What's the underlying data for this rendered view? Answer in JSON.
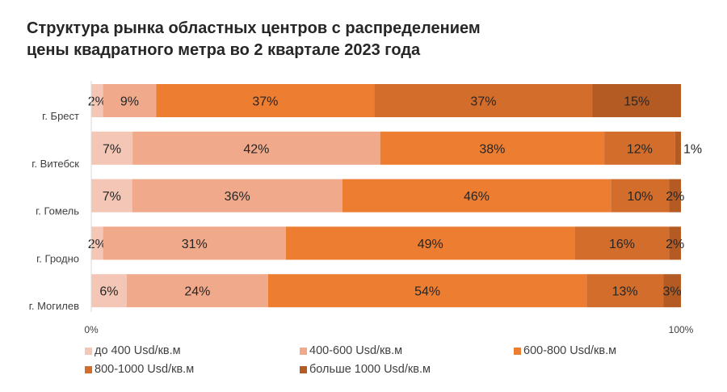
{
  "chart_data": {
    "type": "bar",
    "orientation": "horizontal",
    "stacked": "percent",
    "title": "Структура рынка областных центров с распределением цены квадратного метра во 2 квартале 2023 года",
    "title_lines": [
      "Структура рынка областных центров с распределением",
      "цены квадратного метра во 2 квартале 2023 года"
    ],
    "categories": [
      "г. Брест",
      "г. Витебск",
      "г. Гомель",
      "г. Гродно",
      "г. Могилев"
    ],
    "series": [
      {
        "name": "до 400 Usd/кв.м",
        "color": "#F4C6B6",
        "values": [
          2,
          7,
          7,
          2,
          6
        ]
      },
      {
        "name": "400-600 Usd/кв.м",
        "color": "#F0A98A",
        "values": [
          9,
          42,
          36,
          31,
          24
        ]
      },
      {
        "name": "600-800 Usd/кв.м",
        "color": "#ED7D31",
        "values": [
          37,
          38,
          46,
          49,
          54
        ]
      },
      {
        "name": "800-1000 Usd/кв.м",
        "color": "#D26D2B",
        "values": [
          37,
          12,
          10,
          16,
          13
        ]
      },
      {
        "name": "больше 1000 Usd/кв.м",
        "color": "#B45B24",
        "values": [
          15,
          1,
          2,
          2,
          3
        ]
      }
    ],
    "xlim": [
      0,
      100
    ],
    "x_tick_labels": [
      "0%",
      "100%"
    ],
    "data_label_suffix": "%",
    "legend_position": "bottom",
    "grid": false
  }
}
